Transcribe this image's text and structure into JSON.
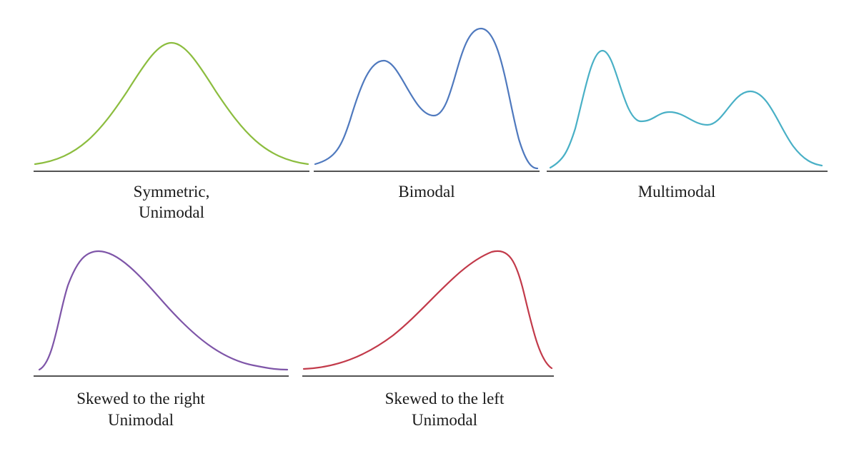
{
  "colors": {
    "green": "#8cbd3f",
    "blue": "#4f79be",
    "teal": "#49b0c6",
    "purple": "#7e55a8",
    "red": "#c23a4a",
    "axis": "#1a1a1a"
  },
  "panels": [
    {
      "id": "symmetric-unimodal",
      "color": "#8cbd3f",
      "label_lines": [
        "Symmetric,",
        "Unimodal"
      ]
    },
    {
      "id": "bimodal",
      "color": "#4f79be",
      "label_lines": [
        "Bimodal"
      ]
    },
    {
      "id": "multimodal",
      "color": "#49b0c6",
      "label_lines": [
        "Multimodal"
      ]
    },
    {
      "id": "skewed-right",
      "color": "#7e55a8",
      "label_lines": [
        "Skewed to the right",
        "Unimodal"
      ]
    },
    {
      "id": "skewed-left",
      "color": "#c23a4a",
      "label_lines": [
        "Skewed to the left",
        "Unimodal"
      ]
    }
  ]
}
